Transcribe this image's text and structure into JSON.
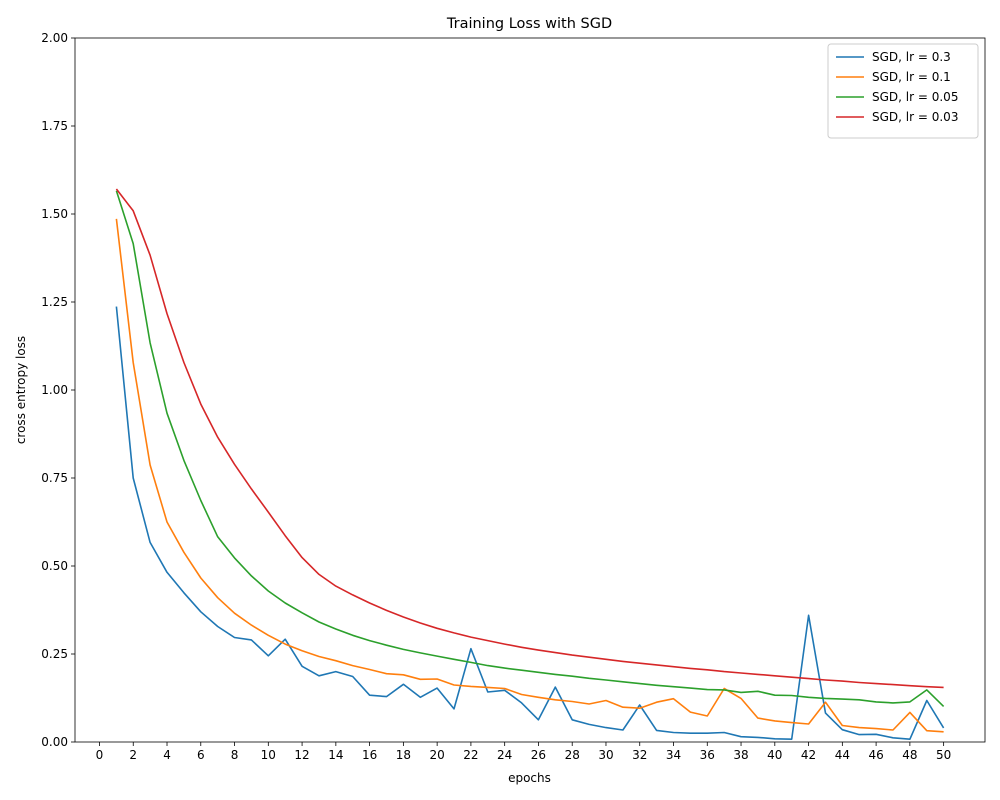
{
  "chart_data": {
    "type": "line",
    "title": "Training Loss with SGD",
    "xlabel": "epochs",
    "ylabel": "cross entropy loss",
    "xlim": [
      -1.45,
      52.45
    ],
    "ylim": [
      0,
      2.0
    ],
    "xticks": [
      0,
      2,
      4,
      6,
      8,
      10,
      12,
      14,
      16,
      18,
      20,
      22,
      24,
      26,
      28,
      30,
      32,
      34,
      36,
      38,
      40,
      42,
      44,
      46,
      48,
      50
    ],
    "yticks": [
      "0.00",
      "0.25",
      "0.50",
      "0.75",
      "1.00",
      "1.25",
      "1.50",
      "1.75",
      "2.00"
    ],
    "grid": false,
    "legend_position": "top-right",
    "x": [
      1,
      2,
      3,
      4,
      5,
      6,
      7,
      8,
      9,
      10,
      11,
      12,
      13,
      14,
      15,
      16,
      17,
      18,
      19,
      20,
      21,
      22,
      23,
      24,
      25,
      26,
      27,
      28,
      29,
      30,
      31,
      32,
      33,
      34,
      35,
      36,
      37,
      38,
      39,
      40,
      41,
      42,
      43,
      44,
      45,
      46,
      47,
      48,
      49,
      50
    ],
    "series": [
      {
        "name": "SGD, lr = 0.3",
        "color": "#1f77b4",
        "values": [
          1.237,
          0.75,
          0.567,
          0.482,
          0.424,
          0.37,
          0.328,
          0.297,
          0.29,
          0.245,
          0.292,
          0.215,
          0.188,
          0.2,
          0.186,
          0.133,
          0.129,
          0.164,
          0.127,
          0.153,
          0.094,
          0.265,
          0.142,
          0.147,
          0.111,
          0.063,
          0.156,
          0.063,
          0.05,
          0.041,
          0.034,
          0.105,
          0.033,
          0.027,
          0.025,
          0.025,
          0.027,
          0.015,
          0.013,
          0.009,
          0.008,
          0.36,
          0.082,
          0.035,
          0.021,
          0.022,
          0.012,
          0.008,
          0.118,
          0.04
        ]
      },
      {
        "name": "SGD, lr = 0.1",
        "color": "#ff7f0e",
        "values": [
          1.486,
          1.078,
          0.787,
          0.625,
          0.539,
          0.466,
          0.41,
          0.366,
          0.332,
          0.303,
          0.278,
          0.259,
          0.243,
          0.231,
          0.217,
          0.206,
          0.194,
          0.191,
          0.178,
          0.179,
          0.162,
          0.158,
          0.155,
          0.152,
          0.135,
          0.127,
          0.12,
          0.115,
          0.108,
          0.118,
          0.099,
          0.096,
          0.113,
          0.123,
          0.085,
          0.074,
          0.152,
          0.124,
          0.068,
          0.06,
          0.055,
          0.051,
          0.113,
          0.047,
          0.041,
          0.038,
          0.034,
          0.084,
          0.032,
          0.029
        ]
      },
      {
        "name": "SGD, lr = 0.05",
        "color": "#2ca02c",
        "values": [
          1.566,
          1.416,
          1.134,
          0.934,
          0.8,
          0.686,
          0.583,
          0.523,
          0.472,
          0.429,
          0.395,
          0.367,
          0.341,
          0.321,
          0.303,
          0.288,
          0.275,
          0.263,
          0.253,
          0.244,
          0.235,
          0.226,
          0.217,
          0.21,
          0.204,
          0.198,
          0.192,
          0.187,
          0.181,
          0.176,
          0.171,
          0.166,
          0.161,
          0.157,
          0.153,
          0.149,
          0.148,
          0.141,
          0.144,
          0.133,
          0.132,
          0.127,
          0.124,
          0.122,
          0.12,
          0.114,
          0.111,
          0.114,
          0.148,
          0.101
        ]
      },
      {
        "name": "SGD, lr = 0.03",
        "color": "#d62728",
        "values": [
          1.571,
          1.509,
          1.383,
          1.217,
          1.078,
          0.96,
          0.866,
          0.789,
          0.719,
          0.653,
          0.586,
          0.524,
          0.476,
          0.443,
          0.418,
          0.395,
          0.374,
          0.355,
          0.338,
          0.323,
          0.31,
          0.298,
          0.288,
          0.278,
          0.269,
          0.261,
          0.254,
          0.247,
          0.241,
          0.235,
          0.229,
          0.224,
          0.219,
          0.214,
          0.209,
          0.205,
          0.2,
          0.196,
          0.192,
          0.188,
          0.184,
          0.18,
          0.176,
          0.173,
          0.169,
          0.166,
          0.163,
          0.16,
          0.157,
          0.155
        ]
      }
    ]
  }
}
